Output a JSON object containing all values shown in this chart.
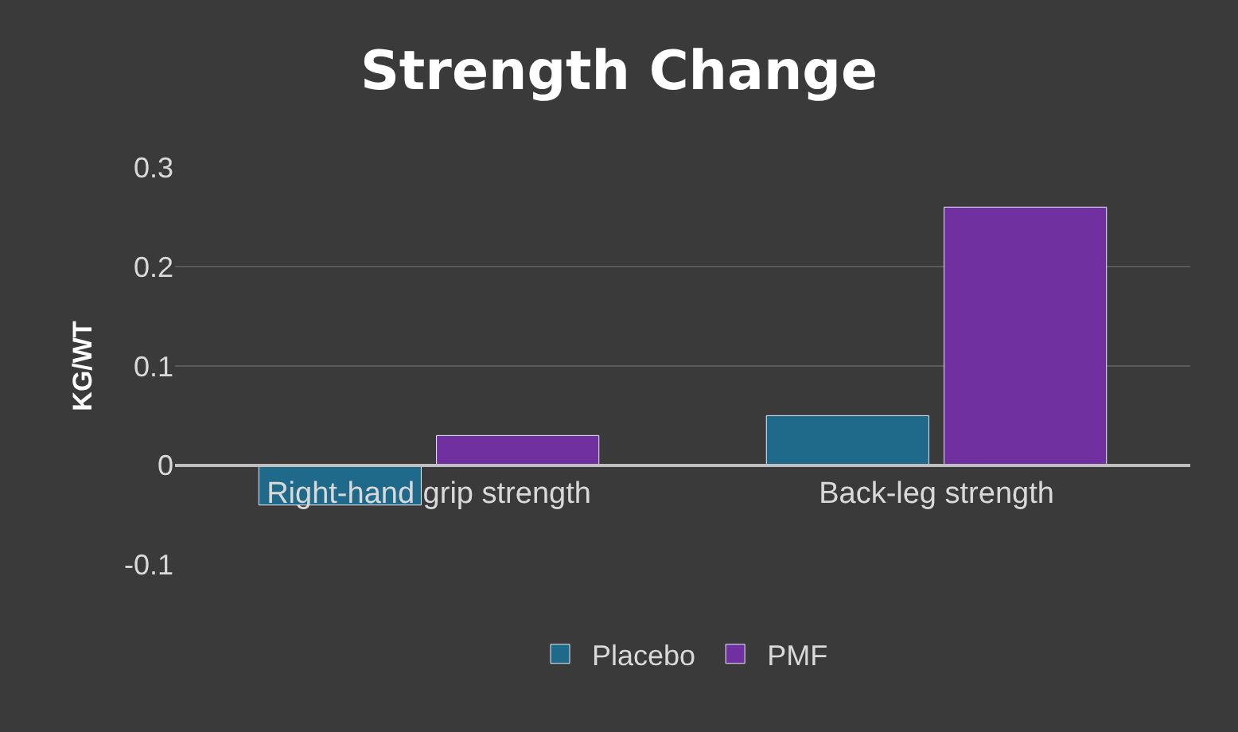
{
  "chart_data": {
    "type": "bar",
    "title": "Strength Change",
    "ylabel": "KG/WT",
    "categories": [
      "Right-hand grip strength",
      "Back-leg strength"
    ],
    "series": [
      {
        "name": "Placebo",
        "color": "#1f6a8a",
        "values": [
          -0.04,
          0.05
        ]
      },
      {
        "name": "PMF",
        "color": "#7030a0",
        "values": [
          0.03,
          0.26
        ]
      }
    ],
    "ylim": [
      -0.1,
      0.3
    ],
    "yticks": [
      {
        "value": -0.1,
        "label": "-0.1"
      },
      0,
      0.1,
      0.2,
      0.3
    ],
    "grid": "y",
    "legend": "bottom"
  }
}
